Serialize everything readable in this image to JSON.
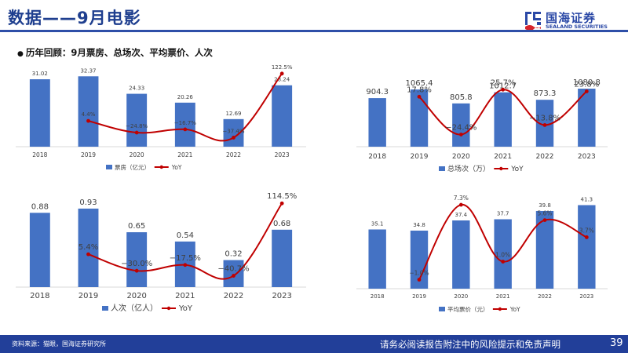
{
  "header": {
    "title": "数据——9月电影",
    "logo_cn": "国海证券",
    "logo_en": "SEALAND SECURITIES"
  },
  "section_title": "历年回顾：9月票房、总场次、平均票价、人次",
  "chart_data": [
    {
      "type": "bar",
      "id": "boxoffice",
      "categories": [
        "2018",
        "2019",
        "2020",
        "2021",
        "2022",
        "2023"
      ],
      "series": [
        {
          "name": "票房（亿元）",
          "type": "bar",
          "values": [
            31.02,
            32.37,
            24.33,
            20.26,
            12.69,
            28.24
          ],
          "labels": [
            "31.02",
            "32.37",
            "24.33",
            "20.26",
            "12.69",
            "28.24"
          ]
        },
        {
          "name": "YoY",
          "type": "line",
          "values": [
            null,
            4.4,
            -24.8,
            -16.7,
            -37.4,
            122.5
          ],
          "labels": [
            "",
            "4.4%",
            "−24.8%",
            "−16.7%",
            "−37.4%",
            "122.5%"
          ]
        }
      ],
      "bar_ylim": [
        0,
        35
      ],
      "line_ylim": [
        -60,
        130
      ],
      "colors": {
        "bar": "#4472c4",
        "line": "#c00000"
      }
    },
    {
      "type": "bar",
      "id": "screenings",
      "categories": [
        "2018",
        "2019",
        "2020",
        "2021",
        "2022",
        "2023"
      ],
      "series": [
        {
          "name": "总场次（万）",
          "type": "bar",
          "values": [
            904.3,
            1065.4,
            805.8,
            1012.7,
            873.3,
            1080.8
          ],
          "labels": [
            "904.3",
            "1065.4",
            "805.8",
            "1012.7",
            "873.3",
            "1080.8"
          ]
        },
        {
          "name": "YoY",
          "type": "line",
          "values": [
            null,
            17.8,
            -24.4,
            25.7,
            -13.8,
            23.8
          ],
          "labels": [
            "",
            "17.8%",
            "−24.4%",
            "25.7%",
            "−13.8%",
            "23.8%"
          ]
        }
      ],
      "bar_ylim": [
        0,
        1300
      ],
      "line_ylim": [
        -38,
        40
      ],
      "colors": {
        "bar": "#4472c4",
        "line": "#c00000"
      }
    },
    {
      "type": "bar",
      "id": "admissions",
      "categories": [
        "2018",
        "2019",
        "2020",
        "2021",
        "2022",
        "2023"
      ],
      "series": [
        {
          "name": "人次（亿人）",
          "type": "bar",
          "values": [
            0.88,
            0.93,
            0.65,
            0.54,
            0.32,
            0.68
          ],
          "labels": [
            "0.88",
            "0.93",
            "0.65",
            "0.54",
            "0.32",
            "0.68"
          ]
        },
        {
          "name": "YoY",
          "type": "line",
          "values": [
            null,
            5.4,
            -30.0,
            -17.5,
            -40.7,
            114.5
          ],
          "labels": [
            "",
            "5.4%",
            "−30.0%",
            "−17.5%",
            "−40.7%",
            "114.5%"
          ]
        }
      ],
      "bar_ylim": [
        0,
        1.05
      ],
      "line_ylim": [
        -65,
        125
      ],
      "colors": {
        "bar": "#4472c4",
        "line": "#c00000"
      }
    },
    {
      "type": "bar",
      "id": "avgprice",
      "categories": [
        "2018",
        "2019",
        "2020",
        "2021",
        "2022",
        "2023"
      ],
      "series": [
        {
          "name": "平均票价（元）",
          "type": "bar",
          "values": [
            35.1,
            34.8,
            37.4,
            37.7,
            39.8,
            41.3
          ],
          "labels": [
            "35.1",
            "34.8",
            "37.4",
            "37.7",
            "39.8",
            "41.3"
          ]
        },
        {
          "name": "YoY",
          "type": "line",
          "values": [
            null,
            -1.0,
            7.3,
            1.0,
            5.6,
            3.7
          ],
          "labels": [
            "",
            "−1.0%",
            "7.3%",
            "1.0%",
            "5.6%",
            "3.7%"
          ]
        }
      ],
      "bar_ylim": [
        20,
        43
      ],
      "line_ylim": [
        -2,
        8
      ],
      "colors": {
        "bar": "#4472c4",
        "line": "#c00000"
      }
    }
  ],
  "footer": {
    "source": "资料来源：猫眼，国海证券研究所",
    "disclaimer": "请务必阅读报告附注中的风险提示和免责声明",
    "page": "39"
  }
}
